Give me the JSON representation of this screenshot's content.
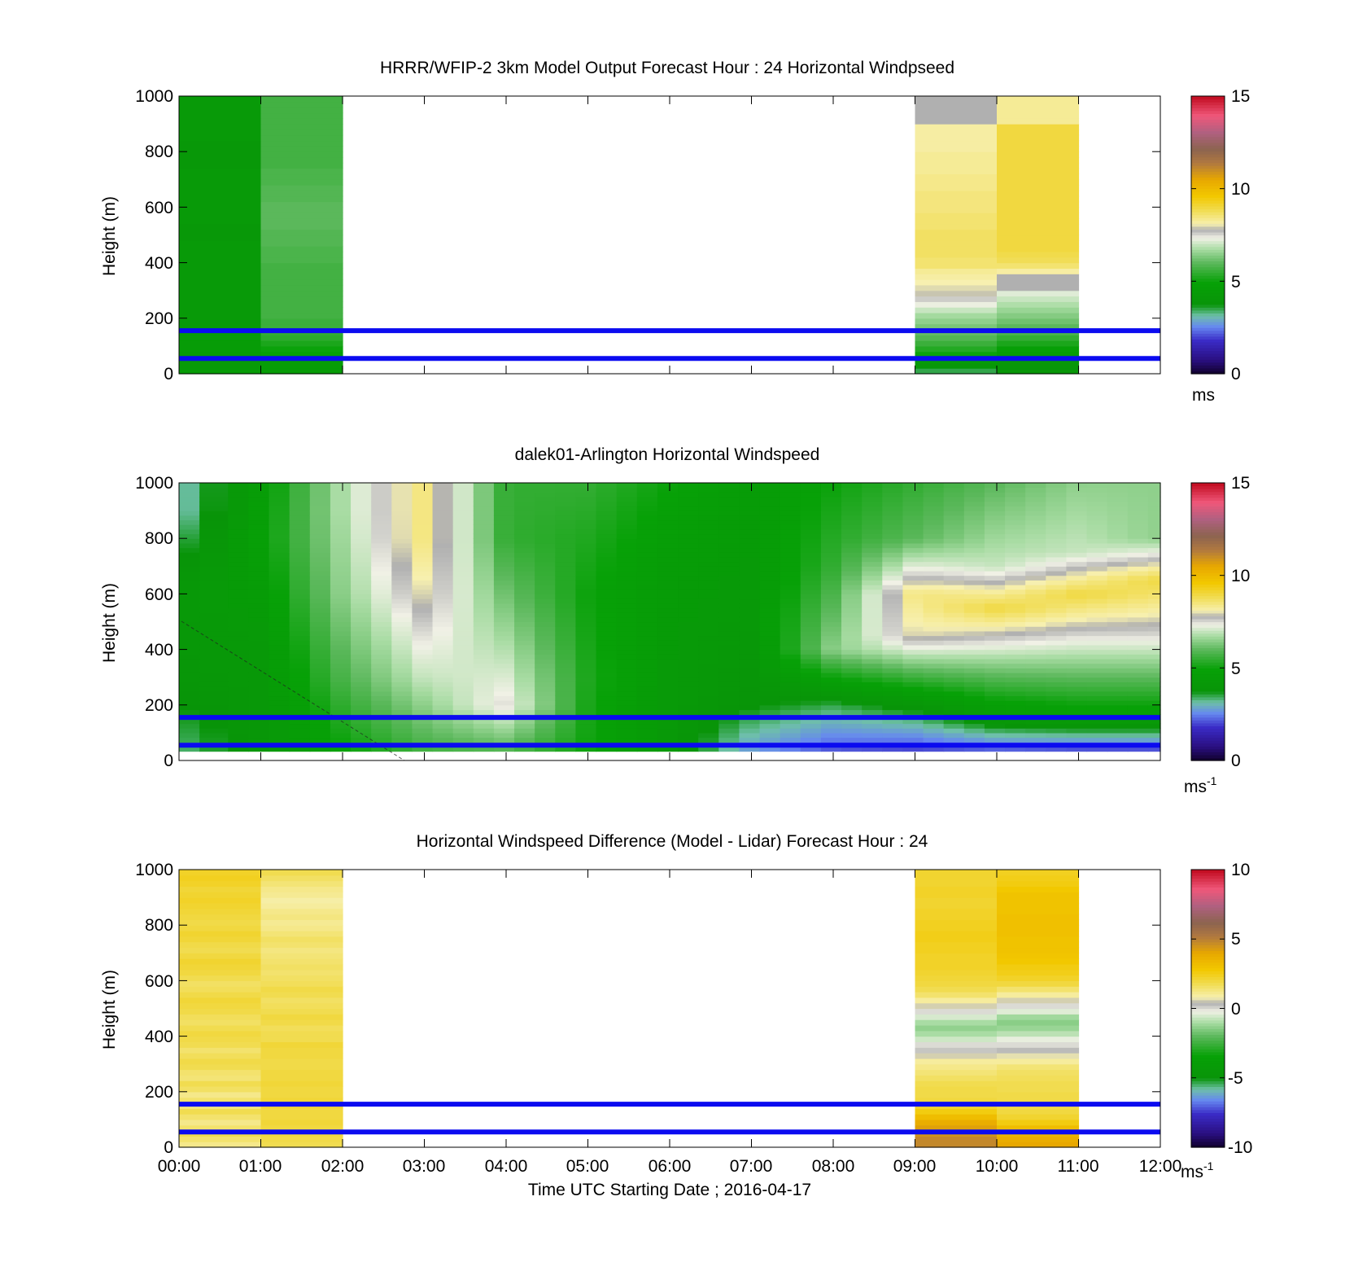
{
  "chart_data": [
    {
      "type": "heatmap",
      "title": "HRRR/WFIP-2 3km Model Output   Forecast Hour : 24 Horizontal Windpseed",
      "ylabel": "Height (m)",
      "ylim": [
        0,
        1000
      ],
      "yticks": [
        "0",
        "200",
        "400",
        "600",
        "800",
        "1000"
      ],
      "xlim": [
        "00:00",
        "12:00"
      ],
      "colorbar": {
        "range": [
          0,
          15
        ],
        "ticks": [
          "0",
          "5",
          "10",
          "15"
        ],
        "unit": "ms",
        "superscript": ""
      },
      "reference_lines_m": [
        155,
        55
      ],
      "reference_line_color": "#0b0bf0",
      "columns": [
        {
          "start_hour": 0,
          "values": [
            4.5,
            4.3,
            4.3,
            4.3,
            4.5,
            4.5,
            4.5,
            4.5,
            4.3,
            4.3,
            4.3,
            4.3,
            4.3,
            4.3,
            4.3,
            4.3,
            4.3,
            4.3,
            4.3,
            4.3,
            4.3,
            4.3,
            4.3,
            4.3,
            4.1,
            4.1,
            4.1,
            4.3,
            4.3,
            4.3,
            4.3,
            4.3,
            4.3,
            4.3,
            4.3,
            4.3,
            4.3,
            4.1,
            4.1,
            4.1,
            4.1,
            4.1,
            4.3,
            4.3,
            4.3,
            4.3,
            4.3,
            4.3,
            4.3,
            4.3
          ]
        },
        {
          "start_hour": 1,
          "values": [
            4.5,
            4.5,
            4.6,
            4.8,
            5.0,
            5.2,
            5.4,
            5.5,
            5.6,
            5.6,
            5.7,
            5.7,
            5.7,
            5.7,
            5.7,
            5.7,
            5.7,
            5.7,
            5.7,
            5.7,
            5.8,
            5.8,
            5.8,
            5.9,
            5.9,
            5.9,
            6.0,
            6.0,
            6.0,
            6.0,
            6.0,
            5.9,
            5.9,
            5.9,
            5.8,
            5.8,
            5.8,
            5.7,
            5.7,
            5.7,
            5.7,
            5.7,
            5.7,
            5.7,
            5.7,
            5.7,
            5.7,
            5.7,
            5.7,
            5.7
          ]
        },
        {
          "start_hour": 9,
          "values": [
            3.5,
            4.0,
            4.5,
            5.0,
            5.3,
            5.6,
            5.9,
            6.1,
            6.3,
            6.5,
            6.7,
            7.0,
            7.3,
            7.6,
            7.9,
            8.0,
            8.1,
            8.2,
            8.3,
            8.6,
            8.6,
            8.7,
            8.7,
            8.7,
            8.7,
            8.7,
            8.6,
            8.6,
            8.6,
            8.5,
            8.5,
            8.5,
            8.5,
            8.4,
            8.4,
            8.4,
            8.3,
            8.3,
            8.3,
            8.3,
            8.2,
            8.2,
            8.2,
            8.2,
            8.2,
            -1,
            -1,
            -1,
            -1,
            -1
          ]
        },
        {
          "start_hour": 10,
          "values": [
            4.0,
            4.0,
            4.2,
            4.5,
            4.8,
            5.2,
            5.5,
            5.8,
            6.0,
            6.2,
            6.4,
            6.6,
            6.8,
            7.0,
            7.2,
            -1,
            -1,
            7.8,
            8.2,
            8.6,
            8.8,
            8.9,
            9.0,
            9.0,
            9.0,
            9.0,
            9.0,
            9.0,
            9.0,
            9.0,
            9.0,
            9.0,
            9.0,
            9.0,
            9.0,
            9.0,
            9.0,
            9.0,
            9.0,
            9.0,
            9.0,
            9.0,
            9.0,
            9.0,
            9.0,
            8.3,
            8.3,
            8.3,
            8.3,
            8.3
          ]
        }
      ]
    },
    {
      "type": "heatmap",
      "title": "dalek01-Arlington  Horizontal Windspeed",
      "ylabel": "Height (m)",
      "ylim": [
        0,
        1000
      ],
      "yticks": [
        "0",
        "200",
        "400",
        "600",
        "800",
        "1000"
      ],
      "xlim": [
        "00:00",
        "12:00"
      ],
      "colorbar": {
        "range": [
          0,
          15
        ],
        "ticks": [
          "0",
          "5",
          "10",
          "15"
        ],
        "unit": "ms",
        "superscript": "-1"
      },
      "reference_lines_m": [
        155,
        55
      ],
      "reference_line_color": "#0b0bf0",
      "profile_start_hours": [
        0,
        0.25,
        0.6,
        0.85,
        1.1,
        1.35,
        1.6,
        1.85,
        2.1,
        2.35,
        2.6,
        2.85,
        3.1,
        3.35,
        3.6,
        3.85,
        4.1,
        4.35,
        4.6,
        4.85,
        5.1,
        5.35,
        5.6,
        5.85,
        6.1,
        6.35,
        6.6,
        6.85,
        7.1,
        7.35,
        7.6,
        7.85,
        8.1,
        8.35,
        8.6,
        8.85,
        9.1,
        9.35,
        9.6,
        9.85,
        10.1,
        10.35,
        10.6,
        10.85,
        11.1,
        11.35,
        11.6,
        11.85
      ],
      "profile_anchors": [
        {
          "at_hour": 0.0,
          "points": [
            [
              0,
              3.2
            ],
            [
              300,
              4.0
            ],
            [
              600,
              4.2
            ],
            [
              900,
              3.0
            ],
            [
              1000,
              3.0
            ]
          ]
        },
        {
          "at_hour": 1.0,
          "points": [
            [
              0,
              4.0
            ],
            [
              400,
              4.2
            ],
            [
              800,
              4.8
            ],
            [
              1000,
              4.6
            ]
          ]
        },
        {
          "at_hour": 2.0,
          "points": [
            [
              0,
              4.8
            ],
            [
              300,
              5.8
            ],
            [
              600,
              6.5
            ],
            [
              900,
              6.8
            ],
            [
              1000,
              6.8
            ]
          ]
        },
        {
          "at_hour": 3.0,
          "points": [
            [
              0,
              5.5
            ],
            [
              300,
              7.0
            ],
            [
              600,
              8.0
            ],
            [
              800,
              8.5
            ],
            [
              1000,
              8.5
            ]
          ]
        },
        {
          "at_hour": 4.0,
          "points": [
            [
              0,
              5.5
            ],
            [
              200,
              7.5
            ],
            [
              500,
              6.5
            ],
            [
              800,
              5.5
            ],
            [
              1000,
              5.5
            ]
          ]
        },
        {
          "at_hour": 5.0,
          "points": [
            [
              0,
              5.0
            ],
            [
              300,
              5.2
            ],
            [
              600,
              5.0
            ],
            [
              1000,
              5.5
            ]
          ]
        },
        {
          "at_hour": 6.0,
          "points": [
            [
              0,
              4.2
            ],
            [
              300,
              4.3
            ],
            [
              700,
              4.5
            ],
            [
              1000,
              5.0
            ]
          ]
        },
        {
          "at_hour": 7.0,
          "points": [
            [
              0,
              2.5
            ],
            [
              200,
              3.8
            ],
            [
              500,
              4.2
            ],
            [
              1000,
              4.5
            ]
          ]
        },
        {
          "at_hour": 8.0,
          "points": [
            [
              0,
              1.8
            ],
            [
              200,
              3.5
            ],
            [
              400,
              6.5
            ],
            [
              700,
              5.5
            ],
            [
              1000,
              5.0
            ]
          ]
        },
        {
          "at_hour": 9.0,
          "points": [
            [
              0,
              1.5
            ],
            [
              200,
              4.0
            ],
            [
              450,
              8.0
            ],
            [
              600,
              8.5
            ],
            [
              800,
              6.0
            ],
            [
              1000,
              5.5
            ]
          ]
        },
        {
          "at_hour": 10.0,
          "points": [
            [
              0,
              1.5
            ],
            [
              150,
              4.2
            ],
            [
              350,
              6.5
            ],
            [
              550,
              9.0
            ],
            [
              700,
              7.0
            ],
            [
              1000,
              6.0
            ]
          ]
        },
        {
          "at_hour": 11.0,
          "points": [
            [
              0,
              1.2
            ],
            [
              150,
              4.5
            ],
            [
              350,
              6.5
            ],
            [
              450,
              7.5
            ],
            [
              600,
              9.0
            ],
            [
              750,
              7.0
            ],
            [
              1000,
              6.5
            ]
          ]
        },
        {
          "at_hour": 12.0,
          "points": [
            [
              0,
              1.2
            ],
            [
              150,
              4.5
            ],
            [
              350,
              6.5
            ],
            [
              450,
              7.5
            ],
            [
              650,
              9.0
            ],
            [
              800,
              6.5
            ],
            [
              1000,
              6.5
            ]
          ]
        }
      ]
    },
    {
      "type": "heatmap",
      "title": "Horizontal Windspeed Difference (Model - Lidar) Forecast Hour : 24",
      "xlabel": "Time UTC  Starting Date ; 2016-04-17",
      "ylabel": "Height (m)",
      "ylim": [
        0,
        1000
      ],
      "yticks": [
        "0",
        "200",
        "400",
        "600",
        "800",
        "1000"
      ],
      "xlim": [
        "00:00",
        "12:00"
      ],
      "xticks": [
        "00:00",
        "01:00",
        "02:00",
        "03:00",
        "04:00",
        "05:00",
        "06:00",
        "07:00",
        "08:00",
        "09:00",
        "10:00",
        "11:00",
        "12:00"
      ],
      "colorbar": {
        "range": [
          -10,
          10
        ],
        "ticks": [
          "-10",
          "-5",
          "0",
          "5",
          "10"
        ],
        "unit": "ms",
        "superscript": "-1"
      },
      "reference_lines_m": [
        155,
        55
      ],
      "reference_line_color": "#0b0bf0",
      "columns": [
        {
          "start_hour": 0,
          "values": [
            1.2,
            1.5,
            1.8,
            1.5,
            1.2,
            1.5,
            1.8,
            1.3,
            1.5,
            1.2,
            1.6,
            1.8,
            1.4,
            1.5,
            1.8,
            1.9,
            1.7,
            1.5,
            1.8,
            1.9,
            2.0,
            1.8,
            1.6,
            1.7,
            1.9,
            2.0,
            2.1,
            1.9,
            1.7,
            1.6,
            1.8,
            2.0,
            2.1,
            2.2,
            2.0,
            1.8,
            1.9,
            2.1,
            2.2,
            2.0,
            1.9,
            2.0,
            2.1,
            2.2,
            2.3,
            2.2,
            2.1,
            2.3,
            2.4,
            2.3
          ]
        },
        {
          "start_hour": 1,
          "values": [
            1.8,
            1.9,
            2.0,
            2.0,
            2.1,
            2.0,
            2.0,
            2.1,
            2.1,
            2.0,
            2.0,
            2.1,
            2.0,
            2.0,
            1.9,
            1.9,
            2.0,
            2.0,
            2.1,
            1.8,
            1.8,
            1.7,
            1.9,
            2.0,
            1.8,
            1.7,
            1.6,
            1.8,
            1.9,
            1.7,
            1.6,
            1.5,
            1.6,
            1.5,
            1.4,
            1.3,
            1.5,
            1.6,
            1.4,
            1.2,
            1.1,
            1.3,
            1.2,
            1.0,
            0.9,
            1.1,
            1.2,
            1.4,
            1.6,
            1.8
          ]
        },
        {
          "start_hour": 9,
          "values": [
            4.8,
            4.8,
            4.5,
            4.2,
            3.8,
            3.2,
            2.6,
            2.2,
            2.0,
            1.9,
            1.9,
            1.8,
            1.6,
            1.4,
            1.2,
            1.0,
            0.6,
            0.2,
            0.0,
            -0.6,
            -1.0,
            -1.3,
            -1.0,
            -0.5,
            0.0,
            0.6,
            1.0,
            1.5,
            1.8,
            2.0,
            2.1,
            2.2,
            2.3,
            2.3,
            2.3,
            2.4,
            2.4,
            2.5,
            2.5,
            2.4,
            2.4,
            2.3,
            2.3,
            2.2,
            2.2,
            2.3,
            2.3,
            2.2,
            2.2,
            2.2
          ]
        },
        {
          "start_hour": 10,
          "values": [
            4.0,
            3.8,
            3.5,
            3.2,
            2.6,
            2.2,
            2.0,
            1.9,
            1.9,
            1.9,
            1.8,
            1.8,
            1.7,
            1.6,
            1.4,
            1.0,
            0.7,
            0.3,
            0.0,
            -0.3,
            -0.8,
            -1.2,
            -1.4,
            -1.1,
            -0.4,
            0.0,
            0.6,
            1.0,
            1.5,
            2.0,
            2.3,
            2.5,
            2.6,
            2.8,
            2.9,
            3.0,
            3.0,
            3.0,
            3.1,
            3.1,
            3.1,
            3.1,
            3.0,
            3.0,
            3.0,
            3.0,
            2.8,
            2.6,
            2.5,
            2.4
          ]
        }
      ]
    }
  ],
  "colormap_stops": [
    [
      0.0,
      "#10002a"
    ],
    [
      0.05,
      "#2a0f80"
    ],
    [
      0.12,
      "#3a2bc6"
    ],
    [
      0.17,
      "#6688f0"
    ],
    [
      0.21,
      "#6ec0a8"
    ],
    [
      0.25,
      "#089408"
    ],
    [
      0.33,
      "#07a107"
    ],
    [
      0.4,
      "#5bb85b"
    ],
    [
      0.45,
      "#a9dca4"
    ],
    [
      0.49,
      "#f1f1e6"
    ],
    [
      0.52,
      "#b0b0b0"
    ],
    [
      0.54,
      "#f7f0b0"
    ],
    [
      0.59,
      "#f1dc50"
    ],
    [
      0.64,
      "#f2c800"
    ],
    [
      0.7,
      "#e8a800"
    ],
    [
      0.76,
      "#b07840"
    ],
    [
      0.81,
      "#8c6450"
    ],
    [
      0.87,
      "#b06080"
    ],
    [
      0.93,
      "#f0587a"
    ],
    [
      1.0,
      "#c00a1e"
    ]
  ]
}
